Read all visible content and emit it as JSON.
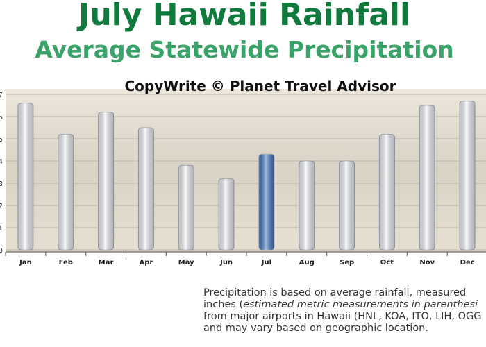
{
  "chart_data": {
    "type": "bar",
    "title": "July Hawaii Rainfall",
    "subtitle": "Average Statewide Precipitation",
    "credit": "CopyWrite © Planet Travel Advisor",
    "categories": [
      "Jan",
      "Feb",
      "Mar",
      "Apr",
      "May",
      "Jun",
      "Jul",
      "Aug",
      "Sep",
      "Oct",
      "Nov",
      "Dec"
    ],
    "values": [
      6.6,
      5.2,
      6.2,
      5.5,
      3.8,
      3.2,
      4.3,
      4.0,
      4.0,
      5.2,
      6.5,
      6.7
    ],
    "colors": [
      "#f4f6fb",
      "#f4f6fb",
      "#f4f6fb",
      "#f4f6fb",
      "#f4f6fb",
      "#f4f6fb",
      "#3f78c4",
      "#f4f6fb",
      "#f4f6fb",
      "#f4f6fb",
      "#f4f6fb",
      "#f4f6fb"
    ],
    "ylim": [
      0,
      7
    ],
    "yticks": [
      0,
      1,
      2,
      3,
      4,
      5,
      6,
      7
    ],
    "grid": true
  },
  "note": {
    "line1": "Precipitation is based on average rainfall, measured",
    "line2_start": "inches (",
    "line2_italic": "estimated metric measurements in parenthesi",
    "line3": "from major airports in Hawaii (HNL, KOA, ITO, LIH, OGG",
    "line4": "and may vary based on geographic location."
  }
}
